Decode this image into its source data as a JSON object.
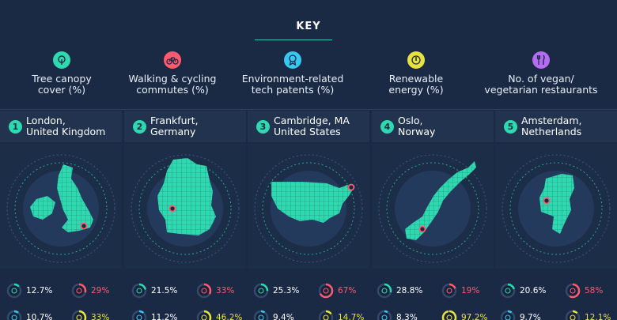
{
  "key": {
    "title": "KEY",
    "items": [
      {
        "label_line1": "Tree canopy",
        "label_line2": "cover (%)",
        "icon": "tree-icon",
        "color": "#2fd9b0"
      },
      {
        "label_line1": "Walking & cycling",
        "label_line2": "commutes (%)",
        "icon": "bicycle-icon",
        "color": "#ff5a6e"
      },
      {
        "label_line1": "Environment-related",
        "label_line2": "tech patents (%)",
        "icon": "award-icon",
        "color": "#36c8f0"
      },
      {
        "label_line1": "Renewable",
        "label_line2": "energy (%)",
        "icon": "power-icon",
        "color": "#e8e23c"
      },
      {
        "label_line1": "No. of vegan/",
        "label_line2": "vegetarian restaurants",
        "icon": "cutlery-icon",
        "color": "#b36cf2"
      }
    ]
  },
  "cities": [
    {
      "rank": "1",
      "name_line1": "London,",
      "name_line2": "United Kingdom",
      "map": "uk-map",
      "stats": {
        "tree": "12.7%",
        "walk": "29%",
        "patents": "10.7%",
        "renewable": "33%"
      },
      "ring": {
        "tree": 0.127,
        "walk": 0.29,
        "patents": 0.107,
        "renewable": 0.33
      }
    },
    {
      "rank": "2",
      "name_line1": "Frankfurt,",
      "name_line2": "Germany",
      "map": "germany-map",
      "stats": {
        "tree": "21.5%",
        "walk": "33%",
        "patents": "11.2%",
        "renewable": "46.2%"
      },
      "ring": {
        "tree": 0.215,
        "walk": 0.33,
        "patents": 0.112,
        "renewable": 0.462
      }
    },
    {
      "rank": "3",
      "name_line1": "Cambridge, MA",
      "name_line2": "United States",
      "map": "usa-map",
      "stats": {
        "tree": "25.3%",
        "walk": "67%",
        "patents": "9.4%",
        "renewable": "14.7%"
      },
      "ring": {
        "tree": 0.253,
        "walk": 0.67,
        "patents": 0.094,
        "renewable": 0.147
      }
    },
    {
      "rank": "4",
      "name_line1": "Oslo,",
      "name_line2": "Norway",
      "map": "norway-map",
      "stats": {
        "tree": "28.8%",
        "walk": "19%",
        "patents": "8.3%",
        "renewable": "97.2%"
      },
      "ring": {
        "tree": 0.288,
        "walk": 0.19,
        "patents": 0.083,
        "renewable": 0.972
      }
    },
    {
      "rank": "5",
      "name_line1": "Amsterdam,",
      "name_line2": "Netherlands",
      "map": "netherlands-map",
      "stats": {
        "tree": "20.6%",
        "walk": "58%",
        "patents": "9.7%",
        "renewable": "12.1%"
      },
      "ring": {
        "tree": 0.206,
        "walk": 0.58,
        "patents": 0.097,
        "renewable": 0.121
      }
    }
  ],
  "colors": {
    "background": "#1a2a44",
    "teal": "#2fd9b0",
    "red": "#ff5a6e",
    "blue": "#36c8f0",
    "yellow": "#e8e23c",
    "purple": "#b36cf2"
  }
}
